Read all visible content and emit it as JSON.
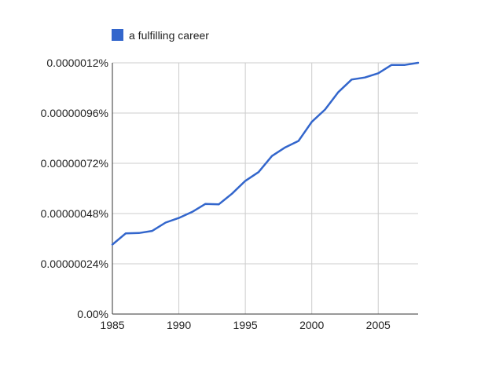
{
  "chart_data": {
    "type": "line",
    "title": "",
    "xlabel": "",
    "ylabel": "",
    "legend_position": "top-left",
    "grid": true,
    "xlim": [
      1985,
      2008
    ],
    "ylim": [
      0,
      1.2e-06
    ],
    "x_ticks": [
      1985,
      1990,
      1995,
      2000,
      2005
    ],
    "x_tick_labels": [
      "1985",
      "1990",
      "1995",
      "2000",
      "2005"
    ],
    "y_ticks": [
      0,
      2.4e-07,
      4.8e-07,
      7.2e-07,
      9.6e-07,
      1.2e-06
    ],
    "y_tick_labels": [
      "0.00%",
      "0.00000024%",
      "0.00000048%",
      "0.00000072%",
      "0.00000096%",
      "0.0000012%"
    ],
    "series": [
      {
        "name": "a fulfilling career",
        "color": "#3366cc",
        "x": [
          1985,
          1986,
          1987,
          1988,
          1989,
          1990,
          1991,
          1992,
          1993,
          1994,
          1995,
          1996,
          1997,
          1998,
          1999,
          2000,
          2001,
          2002,
          2003,
          2004,
          2005,
          2006,
          2007,
          2008
        ],
        "values": [
          3.32e-07,
          3.85e-07,
          3.87e-07,
          3.97e-07,
          4.37e-07,
          4.59e-07,
          4.88e-07,
          5.26e-07,
          5.24e-07,
          5.75e-07,
          6.36e-07,
          6.78e-07,
          7.55e-07,
          7.96e-07,
          8.27e-07,
          9.18e-07,
          9.77e-07,
          1.06e-06,
          1.12e-06,
          1.13e-06,
          1.15e-06,
          1.19e-06,
          1.19e-06,
          1.2e-06
        ]
      }
    ]
  }
}
